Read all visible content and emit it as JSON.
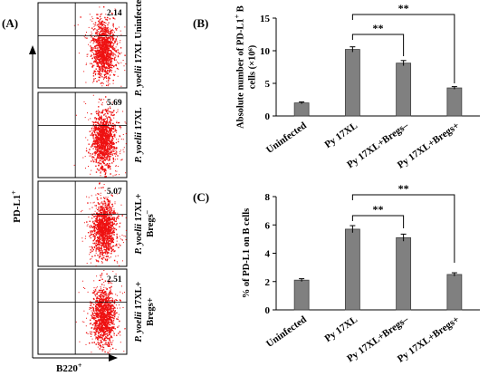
{
  "panel_a": {
    "label": "(A)",
    "y_axis_label": "PD-L1",
    "y_axis_sup": "+",
    "x_axis_label": "B220",
    "x_axis_sup": "+",
    "plots": [
      {
        "value": "2.14",
        "label_lines": [
          "P. yoelii 17XL Uninfected"
        ],
        "italic_prefix": ""
      },
      {
        "value": "5.69",
        "label_lines": [
          "P. yoelii 17XL"
        ],
        "italic_prefix": "P. yoelii"
      },
      {
        "value": "5.07",
        "label_lines": [
          "P. yoelii 17XL+",
          "Bregs"
        ],
        "italic_prefix": "P. yoelii",
        "sup2": "–"
      },
      {
        "value": "2.51",
        "label_lines": [
          "P. yoelii 17XL+",
          "Bregs+"
        ],
        "italic_prefix": "P. yoelii"
      }
    ]
  },
  "chart_data": [
    {
      "panel": "(B)",
      "type": "bar",
      "categories": [
        "Uninfected",
        "Py 17XL",
        "Py 17XL+Bregs–",
        "Py 17XL+Bregs+"
      ],
      "values": [
        2.0,
        10.2,
        8.1,
        4.3
      ],
      "errors": [
        0.15,
        0.4,
        0.4,
        0.2
      ],
      "ylabel_lines": [
        "Absolute number of  PD-L1",
        "cells (×10⁶)"
      ],
      "ylabel_sup": "+",
      "ylabel_tail": " B",
      "ylim": [
        0,
        15
      ],
      "yticks": [
        0,
        5,
        10,
        15
      ],
      "significance": [
        {
          "from": 1,
          "to": 2,
          "label": "**"
        },
        {
          "from": 1,
          "to": 3,
          "label": "**"
        }
      ],
      "bar_color": "#808080"
    },
    {
      "panel": "(C)",
      "type": "bar",
      "categories": [
        "Uninfected",
        "Py 17XL",
        "Py 17XL+Bregs–",
        "Py 17XL+Bregs+"
      ],
      "values": [
        2.1,
        5.7,
        5.1,
        2.5
      ],
      "errors": [
        0.1,
        0.25,
        0.25,
        0.12
      ],
      "ylabel_lines": [
        "% of PD-L1 on B cells"
      ],
      "ylim": [
        0,
        8
      ],
      "yticks": [
        0,
        2,
        4,
        6,
        8
      ],
      "significance": [
        {
          "from": 1,
          "to": 2,
          "label": "**"
        },
        {
          "from": 1,
          "to": 3,
          "label": "**"
        }
      ],
      "bar_color": "#808080"
    }
  ]
}
